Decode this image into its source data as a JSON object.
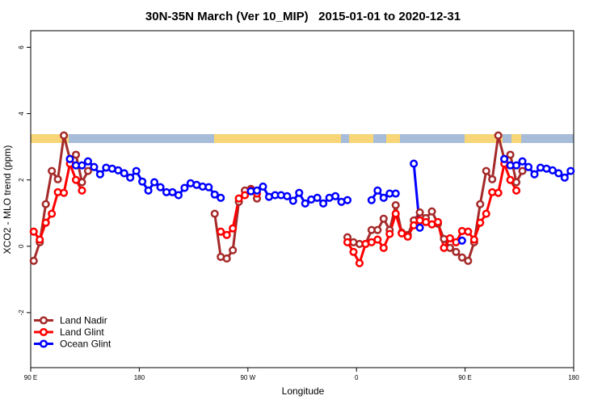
{
  "chart_data": {
    "type": "line",
    "title": "30N-35N March (Ver 10_MIP)   2015-01-01 to 2020-12-31",
    "x_label": "Longitude",
    "y_label": "XCO2 - MLO trend (ppm)",
    "xlim": [
      90,
      540
    ],
    "ylim": [
      -3.66,
      6.5
    ],
    "xticks": [
      {
        "value": 90,
        "label": "90 E"
      },
      {
        "value": 180,
        "label": "180"
      },
      {
        "value": 270,
        "label": "90 W"
      },
      {
        "value": 360,
        "label": "0"
      },
      {
        "value": 450,
        "label": "90 E"
      },
      {
        "value": 540,
        "label": "180"
      }
    ],
    "yticks": [
      -2,
      0,
      2,
      4,
      6
    ],
    "grid": false,
    "legend": "bottom-left",
    "x": [
      92.5,
      97.5,
      102.5,
      107.5,
      112.5,
      117.5,
      122.5,
      127.5,
      132.5,
      137.5,
      142.5,
      147.5,
      152.5,
      157.5,
      162.5,
      167.5,
      172.5,
      177.5,
      182.5,
      187.5,
      192.5,
      197.5,
      202.5,
      207.5,
      212.5,
      217.5,
      222.5,
      227.5,
      232.5,
      237.5,
      242.5,
      247.5,
      252.5,
      257.5,
      262.5,
      267.5,
      272.5,
      277.5,
      282.5,
      287.5,
      292.5,
      297.5,
      302.5,
      307.5,
      312.5,
      317.5,
      322.5,
      327.5,
      332.5,
      337.5,
      342.5,
      347.5,
      352.5,
      357.5,
      362.5,
      367.5,
      372.5,
      377.5,
      382.5,
      387.5,
      392.5,
      397.5,
      402.5,
      407.5,
      412.5,
      417.5,
      422.5,
      427.5,
      432.5,
      437.5,
      442.5,
      447.5,
      452.5,
      457.5,
      462.5,
      467.5,
      472.5,
      477.5,
      482.5,
      487.5,
      492.5,
      497.5,
      502.5,
      507.5,
      512.5,
      517.5,
      522.5,
      527.5,
      532.5,
      537.5
    ],
    "series": [
      {
        "name": "Land Nadir",
        "color": "#a52a2a",
        "values": [
          -0.44,
          0.12,
          1.27,
          2.27,
          2.02,
          3.34,
          2.63,
          2.76,
          1.93,
          2.27,
          null,
          null,
          null,
          null,
          null,
          null,
          null,
          null,
          null,
          null,
          null,
          null,
          null,
          null,
          null,
          null,
          null,
          null,
          null,
          null,
          0.98,
          -0.32,
          -0.37,
          -0.12,
          1.34,
          1.68,
          1.73,
          1.44,
          null,
          null,
          null,
          null,
          null,
          null,
          null,
          null,
          null,
          null,
          null,
          null,
          null,
          null,
          0.27,
          0.12,
          0.07,
          0.07,
          0.49,
          0.49,
          0.83,
          0.49,
          1.24,
          0.41,
          0.34,
          0.78,
          1.02,
          0.85,
          1.05,
          0.68,
          0.22,
          -0.05,
          -0.17,
          -0.34,
          -0.44,
          0.12,
          1.27,
          2.27,
          2.02,
          3.34,
          2.63,
          2.76,
          1.93,
          2.27,
          null,
          null,
          null,
          null,
          null,
          null,
          null,
          null
        ]
      },
      {
        "name": "Land Glint",
        "color": "#ff0000",
        "values": [
          0.44,
          0.2,
          0.71,
          0.98,
          1.63,
          1.61,
          2.49,
          2.0,
          1.68,
          null,
          null,
          null,
          null,
          null,
          null,
          null,
          null,
          null,
          null,
          null,
          null,
          null,
          null,
          null,
          null,
          null,
          null,
          null,
          null,
          null,
          null,
          0.44,
          0.34,
          0.54,
          1.44,
          1.54,
          1.68,
          1.59,
          null,
          null,
          null,
          null,
          null,
          null,
          null,
          null,
          null,
          null,
          null,
          null,
          null,
          null,
          0.12,
          -0.17,
          -0.51,
          0.07,
          0.12,
          0.2,
          -0.05,
          0.37,
          0.98,
          0.39,
          0.29,
          0.63,
          0.78,
          0.73,
          0.66,
          0.73,
          -0.05,
          0.24,
          0.12,
          0.46,
          0.44,
          0.2,
          0.71,
          0.98,
          1.63,
          1.61,
          2.49,
          2.0,
          1.68,
          null,
          null,
          null,
          null,
          null,
          null,
          null,
          null,
          null
        ]
      },
      {
        "name": "Ocean Glint",
        "color": "#0000ff",
        "values": [
          null,
          null,
          null,
          null,
          null,
          null,
          2.63,
          2.44,
          2.44,
          2.56,
          2.39,
          2.17,
          2.37,
          2.34,
          2.29,
          2.2,
          2.07,
          2.27,
          1.95,
          1.68,
          1.93,
          1.78,
          1.63,
          1.63,
          1.54,
          1.76,
          1.9,
          1.85,
          1.8,
          1.78,
          1.56,
          1.46,
          null,
          null,
          null,
          null,
          1.66,
          1.68,
          1.8,
          1.49,
          1.54,
          1.54,
          1.51,
          1.37,
          1.61,
          1.29,
          1.41,
          1.46,
          1.29,
          1.46,
          1.51,
          1.34,
          1.39,
          null,
          null,
          null,
          1.39,
          1.68,
          1.46,
          1.59,
          1.59,
          null,
          null,
          2.49,
          0.56,
          null,
          null,
          null,
          null,
          null,
          null,
          0.17,
          null,
          null,
          null,
          null,
          null,
          null,
          2.63,
          2.44,
          2.44,
          2.56,
          2.39,
          2.17,
          2.37,
          2.34,
          2.29,
          2.2,
          2.07,
          2.27
        ]
      }
    ]
  }
}
